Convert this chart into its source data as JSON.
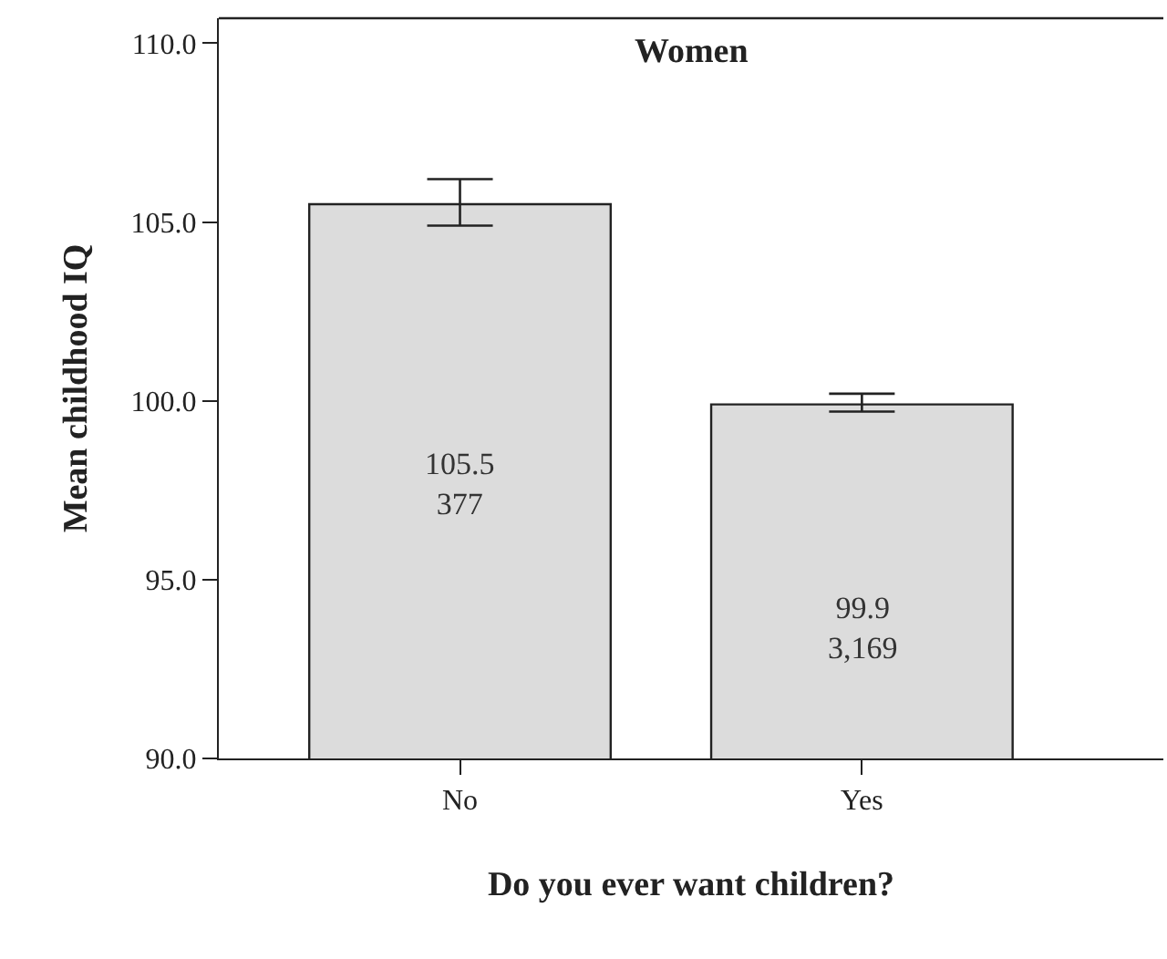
{
  "chart_data": {
    "type": "bar",
    "title": "Women",
    "xlabel": "Do you ever want children?",
    "ylabel": "Mean childhood IQ",
    "categories": [
      "No",
      "Yes"
    ],
    "values": [
      105.5,
      99.9
    ],
    "color": "#dcdcdc",
    "errors": [
      [
        104.9,
        106.2
      ],
      [
        99.7,
        100.2
      ]
    ],
    "annotations": [
      "105.5\n377",
      "99.9\n3,169"
    ],
    "ylim": [
      90,
      110.7
    ],
    "yticks": [
      {
        "value": 90,
        "label": "90.0"
      },
      {
        "value": 95,
        "label": "95.0"
      },
      {
        "value": 100,
        "label": "100.0"
      },
      {
        "value": 105,
        "label": "105.0"
      },
      {
        "value": 110,
        "label": "110.0"
      }
    ]
  }
}
